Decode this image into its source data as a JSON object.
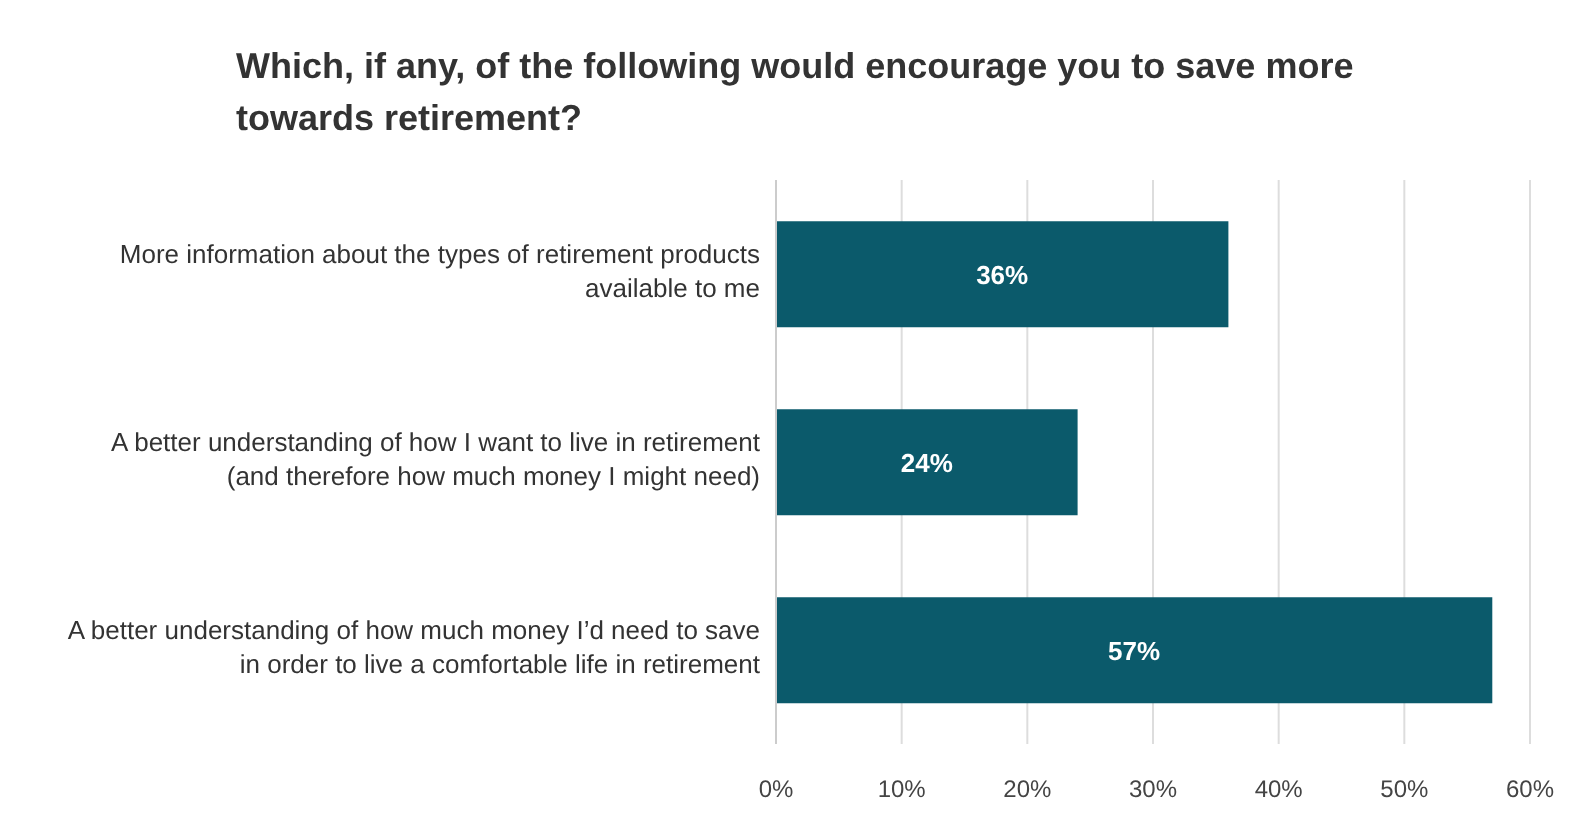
{
  "chart_data": {
    "type": "bar",
    "orientation": "horizontal",
    "title": "Which, if any, of the following would encourage you to save more towards retirement?",
    "categories": [
      "More information about the types of retirement products available to me",
      "A better understanding of how I want to live in retirement (and therefore how much money I might need)",
      "A better understanding of how much money I’d need to save in order to live a comfortable life in retirement"
    ],
    "values": [
      36,
      24,
      57
    ],
    "value_labels": [
      "36%",
      "24%",
      "57%"
    ],
    "color": "#0b5a6b",
    "xlim": [
      0,
      60
    ],
    "xticks": [
      {
        "value": 0,
        "label": "0%"
      },
      {
        "value": 10,
        "label": "10%"
      },
      {
        "value": 20,
        "label": "20%"
      },
      {
        "value": 30,
        "label": "30%"
      },
      {
        "value": 40,
        "label": "40%"
      },
      {
        "value": 50,
        "label": "50%"
      },
      {
        "value": 60,
        "label": "60%"
      }
    ],
    "grid": "x"
  }
}
